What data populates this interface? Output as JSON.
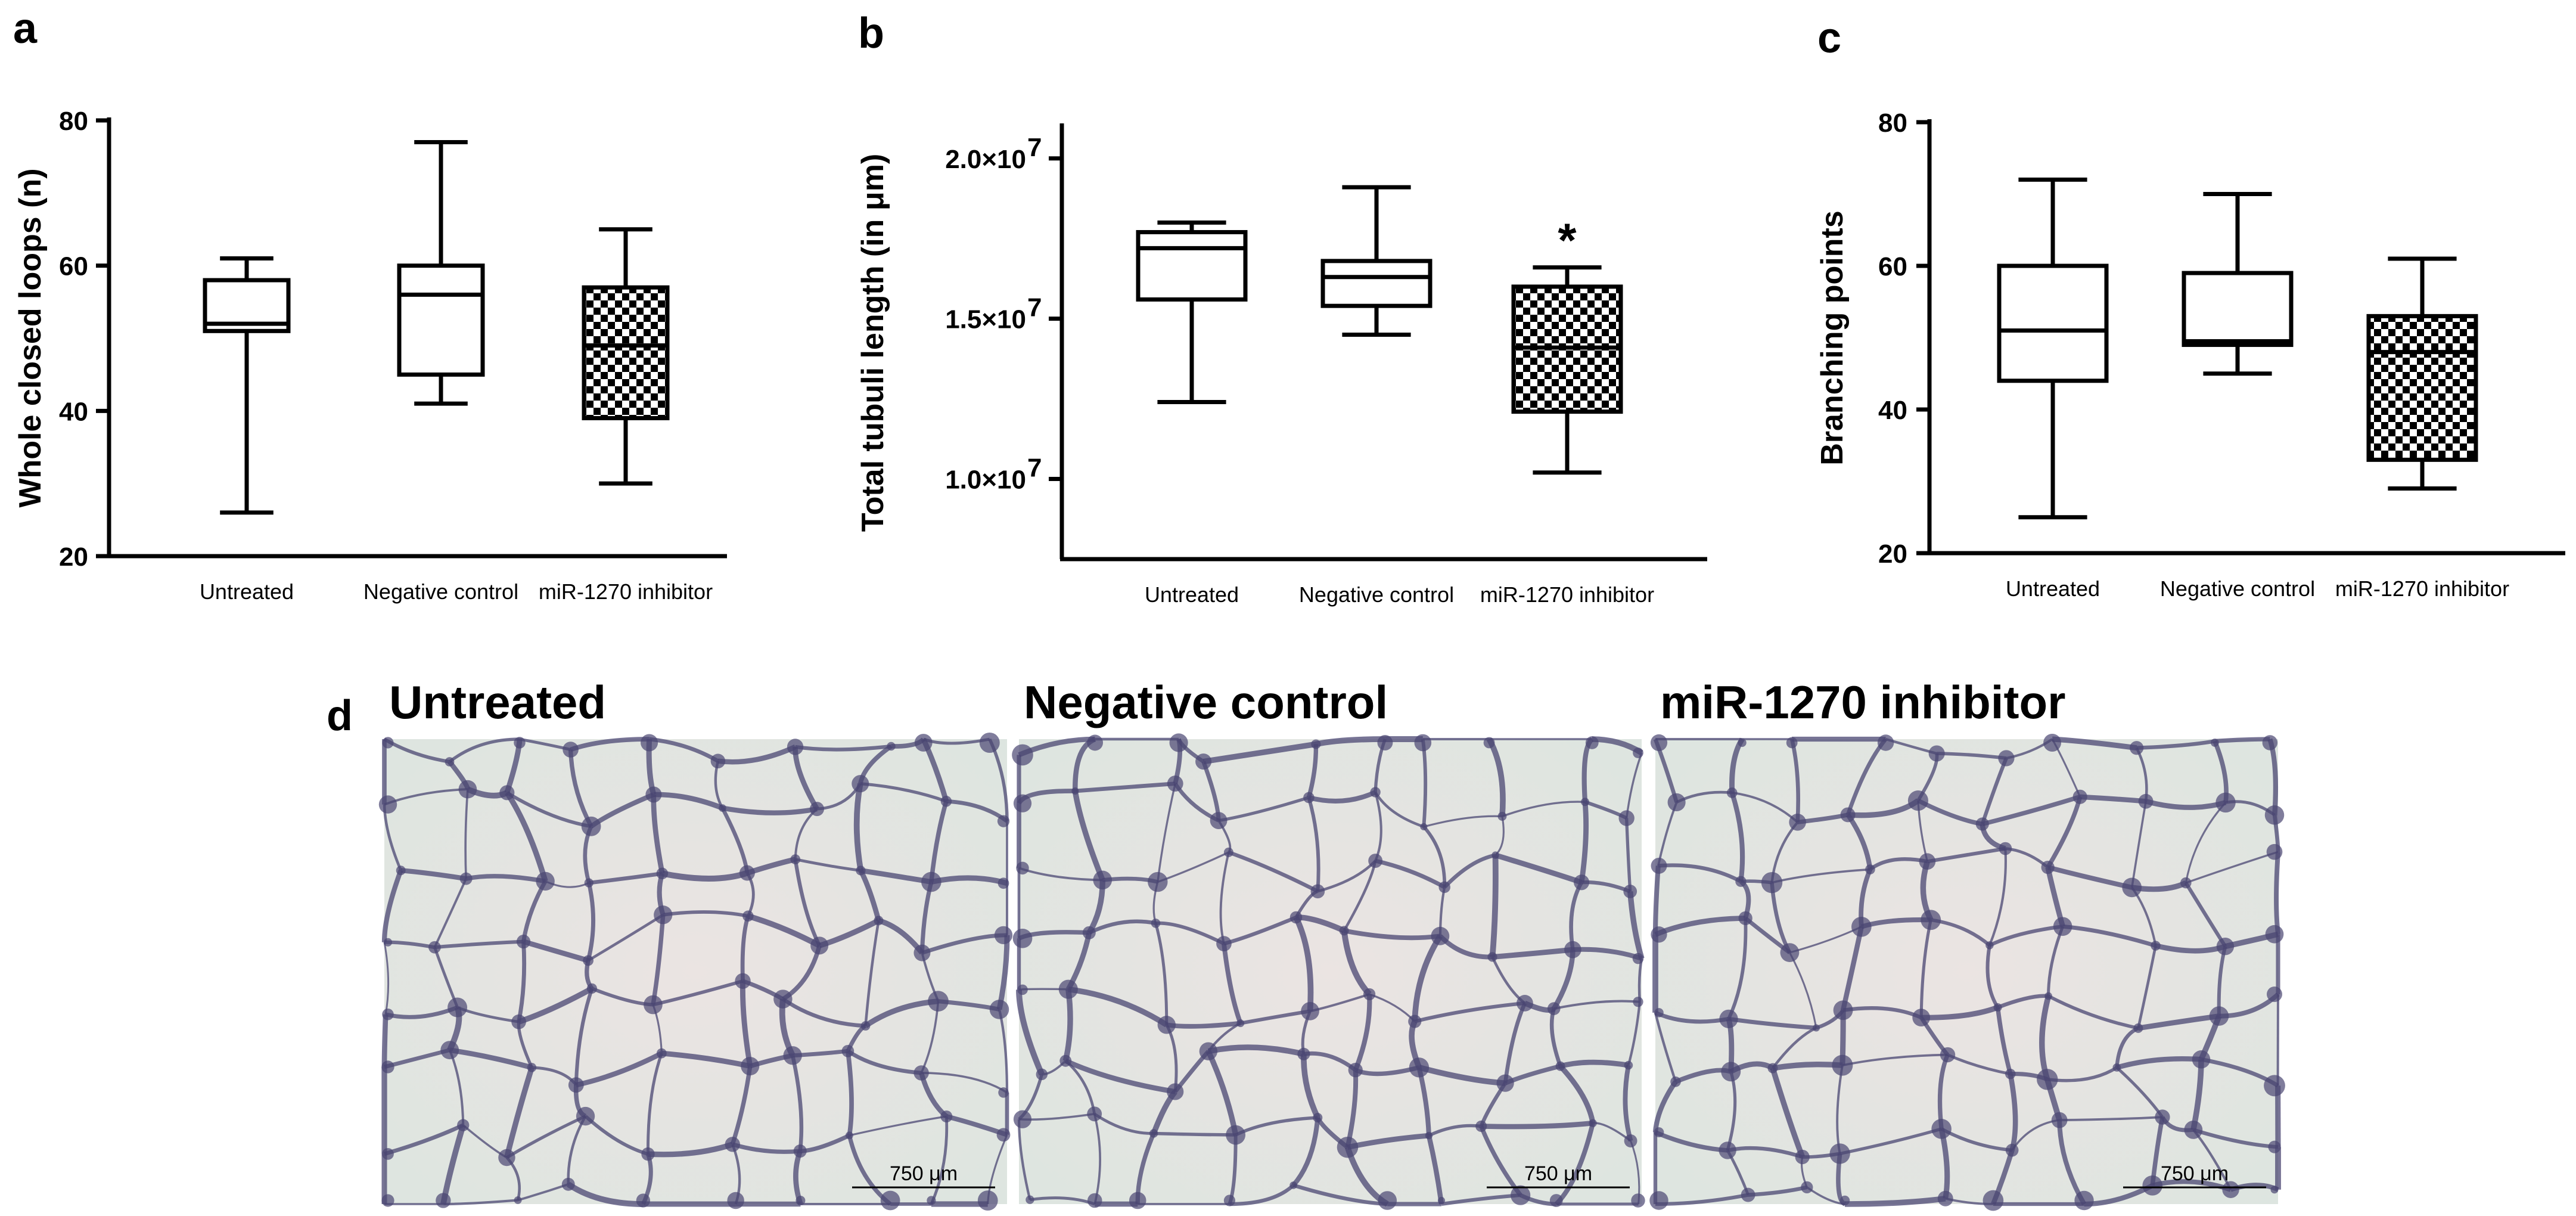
{
  "chart_data": [
    {
      "panel": "a",
      "type": "box",
      "ylabel": "Whole closed loops (n)",
      "ylim": [
        20,
        80
      ],
      "yticks": [
        20,
        40,
        60,
        80
      ],
      "ytick_labels": [
        "20",
        "40",
        "60",
        "80"
      ],
      "categories": [
        "Untreated",
        "Negative control",
        "miR-1270 inhibitor"
      ],
      "boxes": [
        {
          "min": 26,
          "q1": 51,
          "median": 52,
          "q3": 58,
          "max": 61,
          "pattern": "none"
        },
        {
          "min": 41,
          "q1": 45,
          "median": 56,
          "q3": 60,
          "max": 77,
          "pattern": "none"
        },
        {
          "min": 30,
          "q1": 39,
          "median": 49,
          "q3": 57,
          "max": 65,
          "pattern": "checkered"
        }
      ]
    },
    {
      "panel": "b",
      "type": "box",
      "ylabel": "Total tubuli length (in μm)",
      "ylim": [
        7500000,
        21000000
      ],
      "yticks": [
        10000000,
        15000000,
        20000000
      ],
      "ytick_labels": [
        "1.0×10",
        "1.5×10",
        "2.0×10"
      ],
      "ytick_exponent": "7",
      "categories": [
        "Untreated",
        "Negative control",
        "miR-1270 inhibitor"
      ],
      "boxes": [
        {
          "min": 12400000,
          "q1": 15600000,
          "median": 17200000,
          "q3": 17700000,
          "max": 18000000,
          "pattern": "none"
        },
        {
          "min": 14500000,
          "q1": 15400000,
          "median": 16300000,
          "q3": 16800000,
          "max": 19100000,
          "pattern": "none"
        },
        {
          "min": 10200000,
          "q1": 12100000,
          "median": 14100000,
          "q3": 16000000,
          "max": 16600000,
          "pattern": "checkered",
          "annotation": "*"
        }
      ]
    },
    {
      "panel": "c",
      "type": "box",
      "ylabel": "Branching points",
      "ylim": [
        20,
        80
      ],
      "yticks": [
        20,
        40,
        60,
        80
      ],
      "ytick_labels": [
        "20",
        "40",
        "60",
        "80"
      ],
      "categories": [
        "Untreated",
        "Negative control",
        "miR-1270 inhibitor"
      ],
      "boxes": [
        {
          "min": 25,
          "q1": 44,
          "median": 51,
          "q3": 60,
          "max": 72,
          "pattern": "none"
        },
        {
          "min": 45,
          "q1": 49,
          "median": 49.5,
          "q3": 59,
          "max": 70,
          "pattern": "none"
        },
        {
          "min": 29,
          "q1": 33,
          "median": 48,
          "q3": 53,
          "max": 61,
          "pattern": "checkered"
        }
      ]
    }
  ],
  "photos": {
    "panel": "d",
    "items": [
      {
        "title": "Untreated",
        "scale_bar": "750 μm"
      },
      {
        "title": "Negative control",
        "scale_bar": "750 μm"
      },
      {
        "title": "miR-1270 inhibitor",
        "scale_bar": "750 μm"
      }
    ],
    "colors": {
      "background": "#e6e2dc",
      "stain": "#4a4672"
    }
  }
}
